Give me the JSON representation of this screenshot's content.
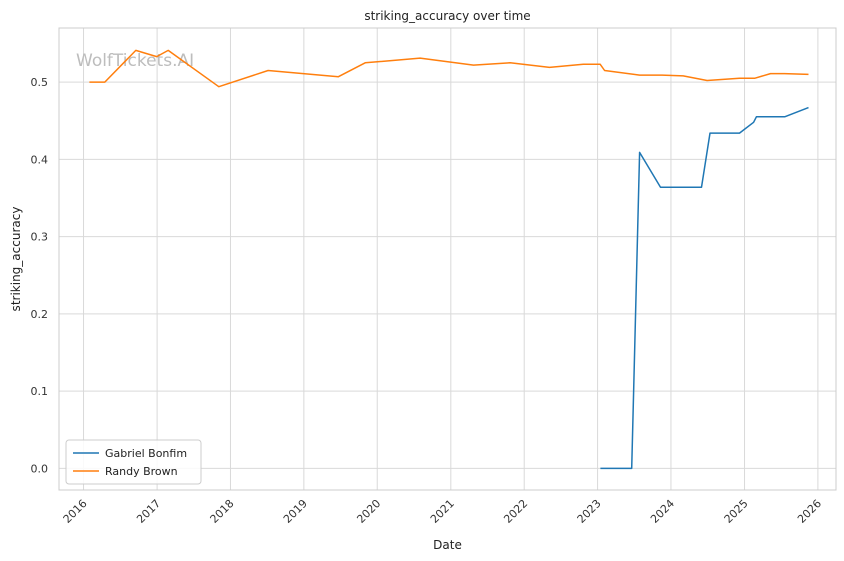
{
  "chart_data": {
    "type": "line",
    "title": "striking_accuracy over time",
    "xlabel": "Date",
    "ylabel": "striking_accuracy",
    "watermark": "WolfTickets.AI",
    "xlim": [
      "2015-09-01",
      "2026-04-01"
    ],
    "ylim": [
      -0.028,
      0.57
    ],
    "x_ticks": [
      "2016",
      "2017",
      "2018",
      "2019",
      "2020",
      "2021",
      "2022",
      "2023",
      "2024",
      "2025",
      "2026"
    ],
    "y_ticks": [
      "0.0",
      "0.1",
      "0.2",
      "0.3",
      "0.4",
      "0.5"
    ],
    "grid": true,
    "legend_position": "lower-left",
    "series": [
      {
        "name": "Gabriel Bonfim",
        "color": "#1f77b4",
        "points": [
          [
            "2023-01-15",
            0.0
          ],
          [
            "2023-06-20",
            0.0
          ],
          [
            "2023-07-29",
            0.409
          ],
          [
            "2023-11-10",
            0.364
          ],
          [
            "2024-06-01",
            0.364
          ],
          [
            "2024-07-13",
            0.434
          ],
          [
            "2024-12-07",
            0.434
          ],
          [
            "2025-02-15",
            0.448
          ],
          [
            "2025-03-01",
            0.455
          ],
          [
            "2025-07-20",
            0.455
          ],
          [
            "2025-11-15",
            0.467
          ]
        ]
      },
      {
        "name": "Randy Brown",
        "color": "#ff7f0e",
        "points": [
          [
            "2016-01-30",
            0.5
          ],
          [
            "2016-04-16",
            0.5
          ],
          [
            "2016-09-17",
            0.541
          ],
          [
            "2016-12-30",
            0.533
          ],
          [
            "2017-02-25",
            0.541
          ],
          [
            "2017-11-04",
            0.494
          ],
          [
            "2018-07-07",
            0.515
          ],
          [
            "2019-06-22",
            0.507
          ],
          [
            "2019-11-02",
            0.525
          ],
          [
            "2020-08-01",
            0.531
          ],
          [
            "2021-04-24",
            0.522
          ],
          [
            "2021-10-23",
            0.525
          ],
          [
            "2022-05-07",
            0.519
          ],
          [
            "2022-10-22",
            0.523
          ],
          [
            "2023-01-14",
            0.523
          ],
          [
            "2023-02-05",
            0.515
          ],
          [
            "2023-07-29",
            0.509
          ],
          [
            "2023-11-18",
            0.509
          ],
          [
            "2024-03-02",
            0.508
          ],
          [
            "2024-06-29",
            0.502
          ],
          [
            "2024-12-07",
            0.505
          ],
          [
            "2025-02-22",
            0.505
          ],
          [
            "2025-05-10",
            0.511
          ],
          [
            "2025-07-19",
            0.511
          ],
          [
            "2025-11-15",
            0.51
          ]
        ]
      }
    ]
  }
}
